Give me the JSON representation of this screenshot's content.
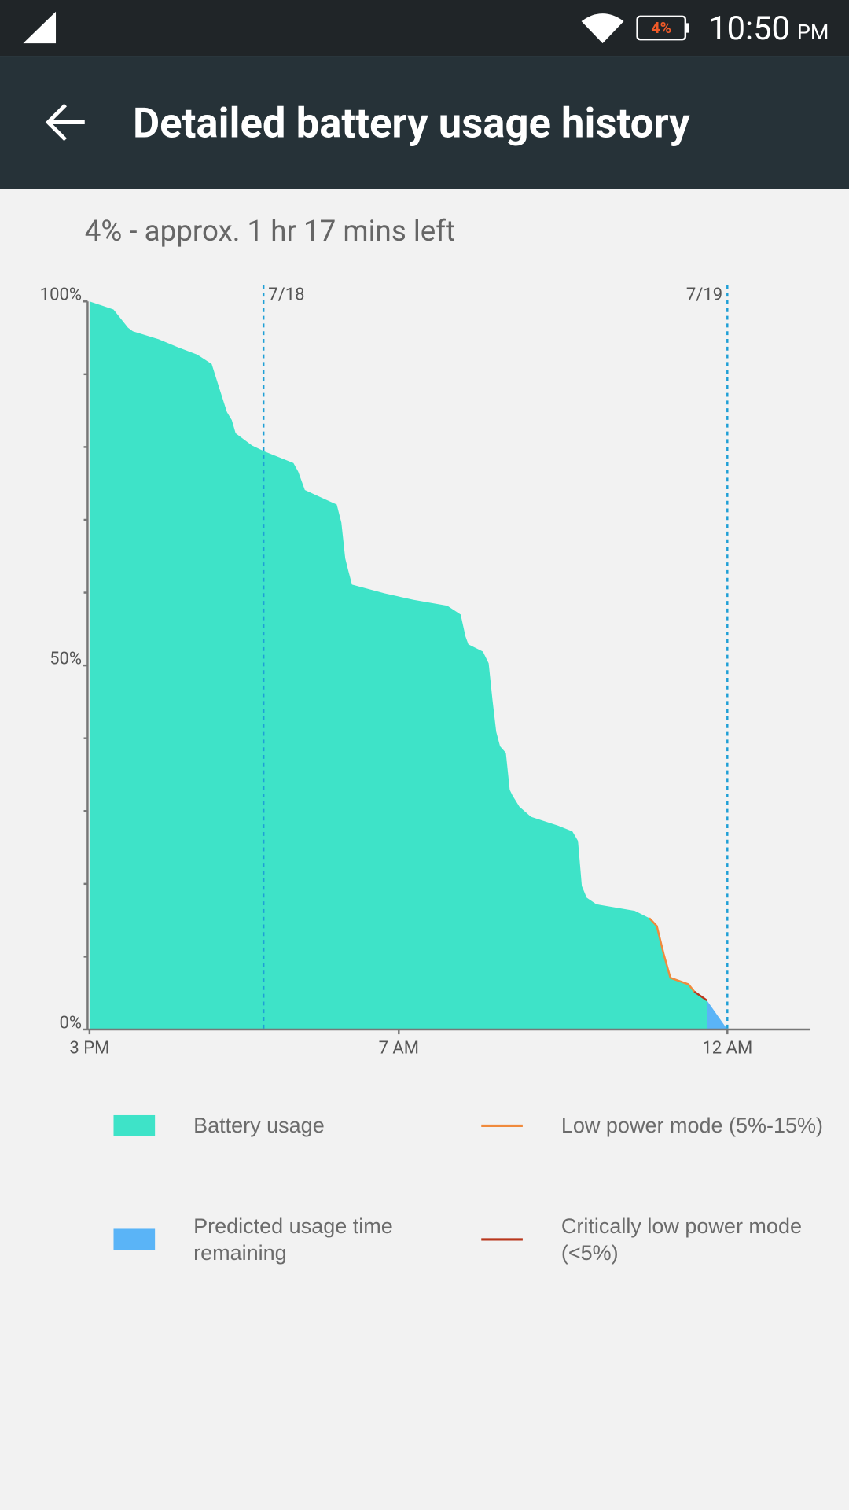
{
  "status_bar": {
    "battery": "4%",
    "time": "10:50",
    "ampm": "PM"
  },
  "header": {
    "title": "Detailed battery usage history"
  },
  "subtitle": "4% - approx. 1 hr 17 mins left",
  "chart_data": {
    "type": "area",
    "xlim": [
      0,
      37.3
    ],
    "xticks": [
      {
        "value": 0,
        "label": "3 PM"
      },
      {
        "value": 16,
        "label": "7 AM"
      },
      {
        "value": 33,
        "label": "12 AM"
      }
    ],
    "ylim": [
      0,
      100
    ],
    "yticks": [
      {
        "value": 0,
        "label": "0%"
      },
      {
        "value": 50,
        "label": "50%"
      },
      {
        "value": 100,
        "label": "100%"
      }
    ],
    "yticks_minor": [
      10,
      20,
      30,
      40,
      60,
      70,
      80,
      90
    ],
    "annotations": [
      {
        "x": 9,
        "label": "7/18",
        "color": "#1e9fd6"
      },
      {
        "x": 33,
        "label": "7/19",
        "color": "#1e9fd6"
      }
    ],
    "series": [
      {
        "name": "Battery usage",
        "color": "#3ee3c8",
        "style": "area",
        "x": [
          0,
          1.24,
          1.99,
          2.24,
          3.58,
          4.58,
          5.57,
          6.32,
          6.82,
          7.11,
          7.36,
          7.56,
          8.41,
          9.05,
          10.55,
          10.8,
          11.14,
          11.79,
          12.79,
          13.03,
          13.23,
          13.38,
          13.58,
          15.27,
          16.77,
          18.51,
          19.2,
          19.45,
          19.6,
          20.35,
          20.65,
          20.85,
          21.04,
          21.24,
          21.54,
          21.74,
          21.89,
          22.24,
          22.84,
          24.23,
          24.98,
          25.27,
          25.47,
          25.72,
          26.22,
          28.21,
          28.96,
          29.35,
          29.7,
          30.05,
          30.99,
          31.29,
          31.94
        ],
        "values": [
          100,
          98.9,
          96.4,
          95.9,
          94.8,
          93.7,
          92.7,
          91.4,
          87.2,
          84.8,
          83.7,
          81.9,
          80.2,
          79.4,
          77.8,
          76.6,
          74.1,
          73.3,
          72.1,
          69.6,
          64.7,
          63.1,
          61.1,
          59.9,
          59,
          58.2,
          57,
          54,
          52.9,
          51.9,
          50.3,
          45.2,
          40.9,
          38.9,
          38,
          32.9,
          32.1,
          30.6,
          29.2,
          28,
          27.2,
          25.9,
          19.7,
          18.1,
          17.2,
          16.3,
          15.3,
          14.2,
          10.4,
          7.1,
          6.2,
          5.2,
          4
        ]
      },
      {
        "name": "Predicted usage time remaining",
        "color": "#5ab4f7",
        "style": "area",
        "x": [
          31.94,
          33
        ],
        "values": [
          4,
          0
        ]
      },
      {
        "name": "Low power mode (5%-15%)",
        "color": "#f08a3c",
        "style": "line",
        "x": [
          28.96,
          29.35,
          29.7,
          30.05,
          30.99,
          31.29
        ],
        "values": [
          15.3,
          14.2,
          10.4,
          7.1,
          6.2,
          5.2
        ]
      },
      {
        "name": "Critically low power mode (<5%)",
        "color": "#b8371c",
        "style": "line",
        "x": [
          31.29,
          31.94
        ],
        "values": [
          5.2,
          4
        ]
      }
    ]
  }
}
